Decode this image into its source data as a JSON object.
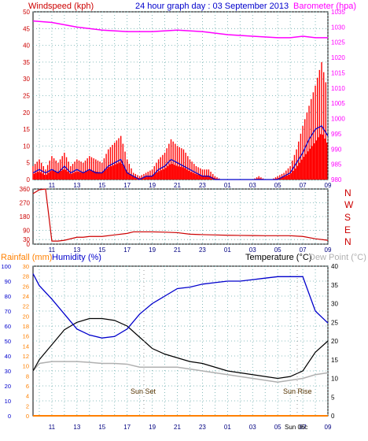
{
  "header": {
    "left_label": "Windspeed (kph)",
    "center_title": "24 hour graph day : 03 September 2013",
    "right_label": "Barometer (hpa)"
  },
  "direction_labels": [
    "N",
    "W",
    "S",
    "E",
    "N"
  ],
  "lower_header": {
    "rain_label": "Rainfall (mm)",
    "humidity_label": "Humidity (%)",
    "temp_label": "Temperature (°C)",
    "dew_label": "Dew Point (°C)"
  },
  "annotations": {
    "sunset": "Sun Set",
    "sunrise": "Sun Rise",
    "sunrise_time_label": "Sun 06c"
  },
  "colors": {
    "wind_gust": "#ff0000",
    "wind_avg": "#0000cc",
    "wind_green": "#008800",
    "barometer": "#ff00ff",
    "direction": "#cc0000",
    "humidity": "#0000cc",
    "temperature": "#000000",
    "dew_point": "#b0b0b0",
    "rainfall": "#ff8000",
    "axis_text_left": "#cc0000",
    "axis_text_right": "#ff00ff",
    "title_blue": "#0000cc"
  },
  "chart_data": [
    {
      "type": "line",
      "panel": "wind-barometer",
      "x": [
        "11",
        "13",
        "15",
        "17",
        "19",
        "21",
        "23",
        "01",
        "03",
        "05",
        "07",
        "09"
      ],
      "y_left_ticks": [
        0,
        5,
        10,
        15,
        20,
        25,
        30,
        35,
        40,
        45,
        50
      ],
      "y_right_ticks": [
        980,
        985,
        990,
        995,
        1000,
        1005,
        1010,
        1015,
        1020,
        1025,
        1030,
        1035
      ],
      "ylim_left": [
        0,
        50
      ],
      "ylim_right": [
        980,
        1035
      ],
      "series": [
        {
          "name": "Windspeed",
          "axis": "left",
          "color": "#ff0000",
          "values": [
            [
              9.5,
              4
            ],
            [
              10,
              6
            ],
            [
              10.5,
              3
            ],
            [
              11,
              7
            ],
            [
              11.5,
              5
            ],
            [
              12,
              8
            ],
            [
              12.5,
              4
            ],
            [
              13,
              6
            ],
            [
              13.5,
              5
            ],
            [
              14,
              7
            ],
            [
              14.5,
              6
            ],
            [
              15,
              5
            ],
            [
              15.5,
              9
            ],
            [
              16,
              11
            ],
            [
              16.5,
              13
            ],
            [
              17,
              6
            ],
            [
              17.5,
              2
            ],
            [
              18,
              1
            ],
            [
              18.5,
              2
            ],
            [
              19,
              3
            ],
            [
              19.5,
              6
            ],
            [
              20,
              8
            ],
            [
              20.5,
              12
            ],
            [
              21,
              10
            ],
            [
              21.5,
              9
            ],
            [
              22,
              6
            ],
            [
              22.5,
              4
            ],
            [
              23,
              3
            ],
            [
              23.5,
              3
            ],
            [
              24,
              1
            ],
            [
              24.5,
              0
            ],
            [
              25,
              0
            ],
            [
              25.5,
              0
            ],
            [
              26,
              0
            ],
            [
              26.5,
              0
            ],
            [
              27,
              0
            ],
            [
              27.5,
              1
            ],
            [
              28,
              0
            ],
            [
              28.5,
              0
            ],
            [
              29,
              1
            ],
            [
              29.5,
              2
            ],
            [
              30,
              4
            ],
            [
              30.5,
              9
            ],
            [
              31,
              16
            ],
            [
              31.5,
              22
            ],
            [
              32,
              28
            ],
            [
              32.5,
              35
            ],
            [
              33,
              26
            ]
          ]
        },
        {
          "name": "Average",
          "axis": "left",
          "color": "#0000cc",
          "values": [
            [
              9.5,
              2
            ],
            [
              10,
              3
            ],
            [
              10.5,
              2
            ],
            [
              11,
              3
            ],
            [
              11.5,
              2
            ],
            [
              12,
              4
            ],
            [
              12.5,
              2
            ],
            [
              13,
              3
            ],
            [
              13.5,
              2
            ],
            [
              14,
              3
            ],
            [
              14.5,
              2
            ],
            [
              15,
              2
            ],
            [
              15.5,
              4
            ],
            [
              16,
              5
            ],
            [
              16.5,
              6
            ],
            [
              17,
              2
            ],
            [
              17.5,
              1
            ],
            [
              18,
              0
            ],
            [
              18.5,
              1
            ],
            [
              19,
              1
            ],
            [
              19.5,
              3
            ],
            [
              20,
              4
            ],
            [
              20.5,
              6
            ],
            [
              21,
              5
            ],
            [
              21.5,
              4
            ],
            [
              22,
              3
            ],
            [
              22.5,
              2
            ],
            [
              23,
              1
            ],
            [
              23.5,
              1
            ],
            [
              24,
              0
            ],
            [
              24.5,
              0
            ],
            [
              25,
              0
            ],
            [
              25.5,
              0
            ],
            [
              26,
              0
            ],
            [
              26.5,
              0
            ],
            [
              27,
              0
            ],
            [
              27.5,
              0
            ],
            [
              28,
              0
            ],
            [
              28.5,
              0
            ],
            [
              29,
              0
            ],
            [
              29.5,
              1
            ],
            [
              30,
              2
            ],
            [
              30.5,
              5
            ],
            [
              31,
              8
            ],
            [
              31.5,
              12
            ],
            [
              32,
              15
            ],
            [
              32.5,
              16
            ],
            [
              33,
              13
            ]
          ]
        },
        {
          "name": "Barometer",
          "axis": "right",
          "color": "#ff00ff",
          "values": [
            [
              9.5,
              1032
            ],
            [
              11,
              1031.5
            ],
            [
              13,
              1030
            ],
            [
              15,
              1029
            ],
            [
              17,
              1028.5
            ],
            [
              19,
              1028.5
            ],
            [
              21,
              1029
            ],
            [
              23,
              1028.5
            ],
            [
              25,
              1027.5
            ],
            [
              27,
              1027
            ],
            [
              29,
              1026.5
            ],
            [
              30,
              1026.5
            ],
            [
              31,
              1027
            ],
            [
              32,
              1026.5
            ],
            [
              33,
              1026.5
            ]
          ]
        }
      ]
    },
    {
      "type": "line",
      "panel": "wind-direction",
      "x": [
        "11",
        "13",
        "15",
        "17",
        "19",
        "21",
        "23",
        "01",
        "03",
        "05",
        "07",
        "09"
      ],
      "y_ticks": [
        0,
        30,
        90,
        180,
        270,
        360
      ],
      "ylim": [
        0,
        360
      ],
      "series": [
        {
          "name": "Direction",
          "color": "#cc0000",
          "values": [
            [
              9.5,
              330
            ],
            [
              10,
              355
            ],
            [
              10.5,
              360
            ],
            [
              11,
              20
            ],
            [
              11.5,
              20
            ],
            [
              12,
              25
            ],
            [
              13,
              45
            ],
            [
              13.5,
              45
            ],
            [
              14,
              50
            ],
            [
              15,
              50
            ],
            [
              16,
              60
            ],
            [
              17,
              70
            ],
            [
              17.5,
              80
            ],
            [
              18,
              80
            ],
            [
              19,
              80
            ],
            [
              20,
              78
            ],
            [
              21,
              75
            ],
            [
              22,
              65
            ],
            [
              23,
              62
            ],
            [
              24,
              60
            ],
            [
              25,
              58
            ],
            [
              26,
              57
            ],
            [
              27,
              56
            ],
            [
              28,
              55
            ],
            [
              29,
              55
            ],
            [
              30,
              55
            ],
            [
              31,
              50
            ],
            [
              32,
              35
            ],
            [
              33,
              25
            ]
          ]
        }
      ]
    },
    {
      "type": "line",
      "panel": "temp-humidity",
      "x": [
        "11",
        "13",
        "15",
        "17",
        "19",
        "21",
        "23",
        "01",
        "03",
        "05",
        "07",
        "09"
      ],
      "y_left_ticks": [
        0,
        10,
        20,
        30,
        40,
        50,
        60,
        70,
        80,
        90,
        100
      ],
      "y_rain_ticks": [
        0,
        2,
        4,
        6,
        8,
        10,
        12,
        14,
        16,
        18,
        20,
        22,
        24,
        26,
        28,
        30
      ],
      "y_right_ticks": [
        0,
        5,
        10,
        15,
        20,
        25,
        30,
        35,
        40
      ],
      "ylim_left": [
        0,
        100
      ],
      "ylim_right": [
        0,
        40
      ],
      "series": [
        {
          "name": "Humidity",
          "axis": "left",
          "color": "#0000cc",
          "values": [
            [
              9.5,
              95
            ],
            [
              10,
              87
            ],
            [
              11,
              78
            ],
            [
              12,
              68
            ],
            [
              13,
              58
            ],
            [
              14,
              54
            ],
            [
              15,
              52
            ],
            [
              16,
              53
            ],
            [
              17,
              58
            ],
            [
              18,
              68
            ],
            [
              19,
              75
            ],
            [
              20,
              80
            ],
            [
              21,
              85
            ],
            [
              22,
              86
            ],
            [
              23,
              88
            ],
            [
              24,
              89
            ],
            [
              25,
              90
            ],
            [
              26,
              90
            ],
            [
              27,
              91
            ],
            [
              28,
              92
            ],
            [
              29,
              93
            ],
            [
              30,
              93
            ],
            [
              31,
              93
            ],
            [
              32,
              70
            ],
            [
              33,
              62
            ]
          ]
        },
        {
          "name": "Temperature",
          "axis": "right",
          "color": "#000000",
          "values": [
            [
              9.5,
              12
            ],
            [
              10,
              15
            ],
            [
              11,
              19
            ],
            [
              12,
              23
            ],
            [
              13,
              25
            ],
            [
              14,
              26
            ],
            [
              15,
              26
            ],
            [
              16,
              25.5
            ],
            [
              17,
              24
            ],
            [
              18,
              21
            ],
            [
              19,
              18
            ],
            [
              20,
              16.5
            ],
            [
              21,
              15.5
            ],
            [
              22,
              14.5
            ],
            [
              23,
              14
            ],
            [
              24,
              13
            ],
            [
              25,
              12
            ],
            [
              26,
              11.5
            ],
            [
              27,
              11
            ],
            [
              28,
              10.5
            ],
            [
              29,
              10
            ],
            [
              30,
              10.5
            ],
            [
              31,
              12
            ],
            [
              32,
              17
            ],
            [
              33,
              20
            ]
          ]
        },
        {
          "name": "Dew Point",
          "axis": "right",
          "color": "#b0b0b0",
          "values": [
            [
              9.5,
              12
            ],
            [
              10,
              14
            ],
            [
              11,
              14.5
            ],
            [
              12,
              14.5
            ],
            [
              13,
              14.5
            ],
            [
              14,
              14.3
            ],
            [
              15,
              14
            ],
            [
              16,
              14
            ],
            [
              17,
              13.8
            ],
            [
              18,
              13
            ],
            [
              19,
              13
            ],
            [
              20,
              13
            ],
            [
              21,
              13
            ],
            [
              22,
              12.5
            ],
            [
              23,
              12
            ],
            [
              24,
              11.5
            ],
            [
              25,
              11
            ],
            [
              26,
              10.5
            ],
            [
              27,
              10
            ],
            [
              28,
              9.5
            ],
            [
              29,
              9
            ],
            [
              30,
              9.5
            ],
            [
              31,
              10
            ],
            [
              32,
              11
            ],
            [
              33,
              11.5
            ]
          ]
        },
        {
          "name": "Rainfall",
          "axis": "rain",
          "color": "#ff8000",
          "values": [
            [
              9.5,
              0
            ],
            [
              33,
              0
            ]
          ]
        }
      ]
    }
  ]
}
